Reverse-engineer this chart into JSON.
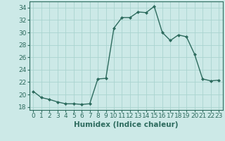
{
  "x": [
    0,
    1,
    2,
    3,
    4,
    5,
    6,
    7,
    8,
    9,
    10,
    11,
    12,
    13,
    14,
    15,
    16,
    17,
    18,
    19,
    20,
    21,
    22,
    23
  ],
  "y": [
    20.5,
    19.5,
    19.2,
    18.8,
    18.5,
    18.5,
    18.4,
    18.5,
    22.5,
    22.6,
    30.7,
    32.4,
    32.4,
    33.3,
    33.2,
    34.2,
    30.0,
    28.7,
    29.6,
    29.3,
    26.5,
    22.5,
    22.2,
    22.3
  ],
  "line_color": "#2d6b5e",
  "marker": "D",
  "markersize": 2.0,
  "linewidth": 1.0,
  "background_color": "#cce9e7",
  "grid_color": "#aad4d0",
  "xlabel": "Humidex (Indice chaleur)",
  "xlabel_fontsize": 7.5,
  "tick_fontsize": 6.5,
  "ylim": [
    17.5,
    35.0
  ],
  "yticks": [
    18,
    20,
    22,
    24,
    26,
    28,
    30,
    32,
    34
  ],
  "xlim": [
    -0.5,
    23.5
  ],
  "xticks": [
    0,
    1,
    2,
    3,
    4,
    5,
    6,
    7,
    8,
    9,
    10,
    11,
    12,
    13,
    14,
    15,
    16,
    17,
    18,
    19,
    20,
    21,
    22,
    23
  ]
}
